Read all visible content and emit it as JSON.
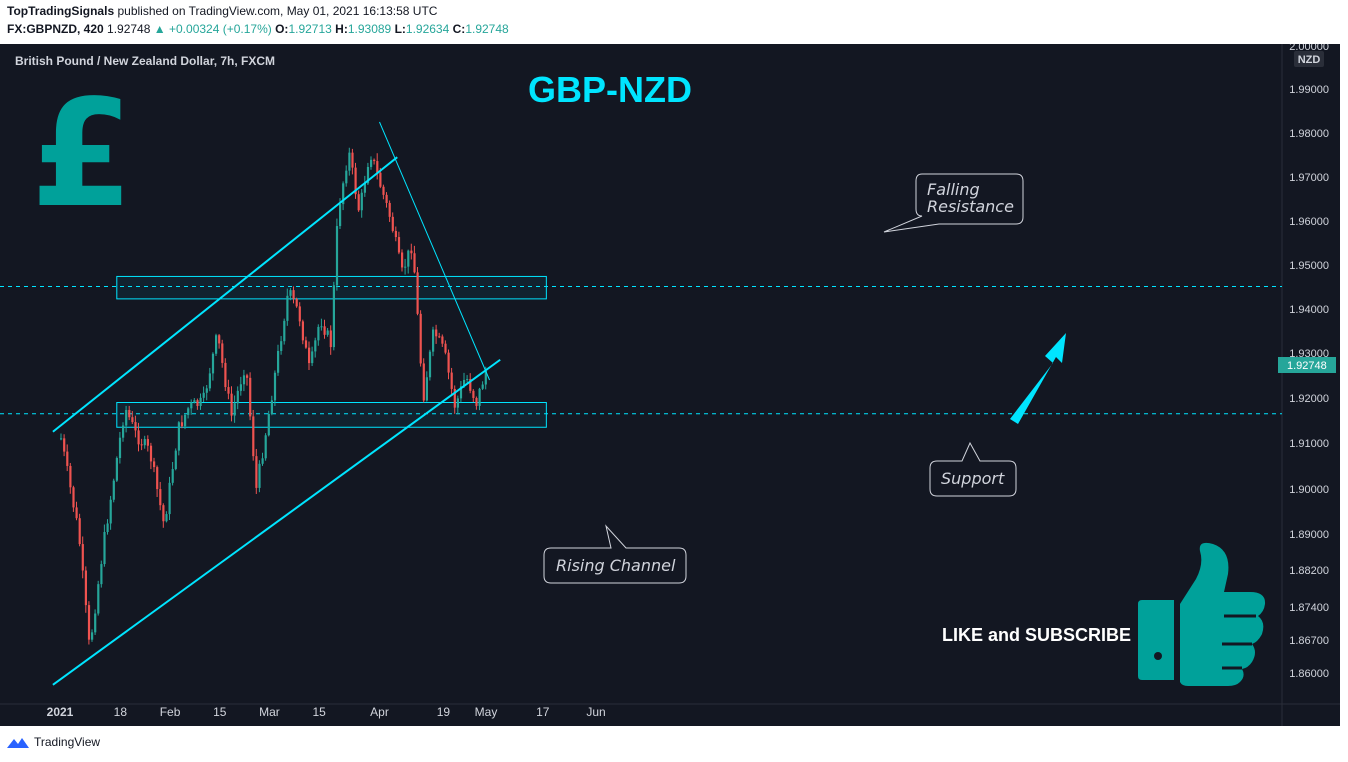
{
  "header": {
    "author": "TopTradingSignals",
    "published": "published on TradingView.com, May 01, 2021 16:13:58 UTC",
    "symbol_interval": "FX:GBPNZD, 420",
    "last": "1.92748",
    "change": "+0.00324 (+0.17%)",
    "open_label": "O:",
    "open": "1.92713",
    "high_label": "H:",
    "high": "1.93089",
    "low_label": "L:",
    "low": "1.92634",
    "close_label": "C:",
    "close": "1.92748"
  },
  "chart": {
    "legend_title": "British Pound / New Zealand Dollar, 7h, FXCM",
    "big_title": "GBP-NZD",
    "currency_symbol": "£",
    "currency_badge": "NZD",
    "price_badge": "1.92748",
    "callouts": {
      "falling_line1": "Falling",
      "falling_line2": "Resistance",
      "support": "Support",
      "rising": "Rising Channel"
    },
    "cta": "LIKE and SUBSCRIBE",
    "colors": {
      "background": "#131722",
      "up": "#26a69a",
      "down": "#ef5350",
      "annotation": "#00e5ff",
      "text": "#d1d4dc"
    }
  },
  "footer": {
    "brand": "TradingView"
  },
  "chart_data": {
    "type": "candlestick",
    "title": "British Pound / New Zealand Dollar, 7h, FXCM",
    "y_axis_ticks": [
      "2.00000",
      "1.99000",
      "1.98000",
      "1.97000",
      "1.96000",
      "1.95000",
      "1.94000",
      "1.93000",
      "1.92000",
      "1.91000",
      "1.90000",
      "1.89000",
      "1.88200",
      "1.87400",
      "1.86700",
      "1.86000"
    ],
    "x_axis_ticks": [
      "2021",
      "18",
      "Feb",
      "15",
      "Mar",
      "15",
      "Apr",
      "19",
      "May",
      "17",
      "Jun"
    ],
    "last_price": 1.92748,
    "path_dates": [
      "2021-01-01",
      "2021-01-06",
      "2021-01-09",
      "2021-01-13",
      "2021-01-19",
      "2021-01-22",
      "2021-01-26",
      "2021-01-30",
      "2021-02-03",
      "2021-02-06",
      "2021-02-10",
      "2021-02-14",
      "2021-02-18",
      "2021-02-22",
      "2021-02-25",
      "2021-02-28",
      "2021-03-03",
      "2021-03-06",
      "2021-03-09",
      "2021-03-12",
      "2021-03-15",
      "2021-03-18",
      "2021-03-20",
      "2021-03-23",
      "2021-03-26",
      "2021-03-29",
      "2021-04-01",
      "2021-04-04",
      "2021-04-07",
      "2021-04-10",
      "2021-04-13",
      "2021-04-16",
      "2021-04-19",
      "2021-04-22",
      "2021-04-25",
      "2021-04-28",
      "2021-05-01"
    ],
    "path_prices": [
      1.911,
      1.89,
      1.865,
      1.888,
      1.918,
      1.912,
      1.908,
      1.892,
      1.913,
      1.918,
      1.919,
      1.934,
      1.916,
      1.928,
      1.9,
      1.914,
      1.929,
      1.944,
      1.939,
      1.926,
      1.938,
      1.932,
      1.962,
      1.976,
      1.962,
      1.976,
      1.968,
      1.96,
      1.948,
      1.955,
      1.92,
      1.935,
      1.93,
      1.918,
      1.925,
      1.919,
      1.927
    ],
    "zones": [
      {
        "label": "Resistance zone",
        "from": 1.9423,
        "to": 1.9474
      },
      {
        "label": "Support zone",
        "from": 1.9135,
        "to": 1.919
      }
    ],
    "lines": [
      {
        "label": "Rising Channel upper",
        "start": [
          "2020-12-30",
          1.9125
        ],
        "end": [
          "2021-04-06",
          1.9745
        ]
      },
      {
        "label": "Rising Channel lower",
        "start": [
          "2020-12-30",
          1.8575
        ],
        "end": [
          "2021-05-05",
          1.9285
        ]
      },
      {
        "label": "Falling Resistance",
        "start": [
          "2021-04-01",
          1.9825
        ],
        "end": [
          "2021-05-02",
          1.924
        ]
      }
    ],
    "dashed_levels": [
      1.9451,
      1.9165
    ],
    "grid": false,
    "legend_position": "top-left"
  }
}
